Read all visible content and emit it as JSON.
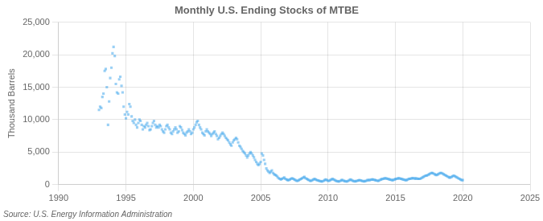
{
  "chart_data": {
    "type": "scatter",
    "title": "Monthly U.S. Ending Stocks of MTBE",
    "ylabel": "Thousand Barrels",
    "annotations": [
      "Source: U.S. Energy Information Administration"
    ],
    "marker": "square",
    "grid": true,
    "xlim": [
      1990,
      2025
    ],
    "xticks": [
      1990,
      1995,
      2000,
      2005,
      2010,
      2015,
      2020,
      2025
    ],
    "ylim": [
      0,
      25000
    ],
    "yticks": [
      0,
      {
        "value": 5000,
        "label": "5,000"
      },
      {
        "value": 10000,
        "label": "10,000"
      },
      {
        "value": 15000,
        "label": "15,000"
      },
      {
        "value": 20000,
        "label": "20,000"
      },
      {
        "value": 25000,
        "label": "25,000"
      }
    ],
    "x": [
      1993.0,
      1993.08,
      1993.17,
      1993.25,
      1993.33,
      1993.42,
      1993.5,
      1993.58,
      1993.67,
      1993.75,
      1993.83,
      1993.92,
      1994.0,
      1994.08,
      1994.17,
      1994.25,
      1994.33,
      1994.42,
      1994.5,
      1994.58,
      1994.67,
      1994.75,
      1994.83,
      1994.92,
      1995.0,
      1995.08,
      1995.17,
      1995.25,
      1995.33,
      1995.42,
      1995.5,
      1995.58,
      1995.67,
      1995.75,
      1995.83,
      1995.92,
      1996.0,
      1996.08,
      1996.17,
      1996.25,
      1996.33,
      1996.42,
      1996.5,
      1996.58,
      1996.67,
      1996.75,
      1996.83,
      1996.92,
      1997.0,
      1997.08,
      1997.17,
      1997.25,
      1997.33,
      1997.42,
      1997.5,
      1997.58,
      1997.67,
      1997.75,
      1997.83,
      1997.92,
      1998.0,
      1998.08,
      1998.17,
      1998.25,
      1998.33,
      1998.42,
      1998.5,
      1998.58,
      1998.67,
      1998.75,
      1998.83,
      1998.92,
      1999.0,
      1999.08,
      1999.17,
      1999.25,
      1999.33,
      1999.42,
      1999.5,
      1999.58,
      1999.67,
      1999.75,
      1999.83,
      1999.92,
      2000.0,
      2000.08,
      2000.17,
      2000.25,
      2000.33,
      2000.42,
      2000.5,
      2000.58,
      2000.67,
      2000.75,
      2000.83,
      2000.92,
      2001.0,
      2001.08,
      2001.17,
      2001.25,
      2001.33,
      2001.42,
      2001.5,
      2001.58,
      2001.67,
      2001.75,
      2001.83,
      2001.92,
      2002.0,
      2002.08,
      2002.17,
      2002.25,
      2002.33,
      2002.42,
      2002.5,
      2002.58,
      2002.67,
      2002.75,
      2002.83,
      2002.92,
      2003.0,
      2003.08,
      2003.17,
      2003.25,
      2003.33,
      2003.42,
      2003.5,
      2003.58,
      2003.67,
      2003.75,
      2003.83,
      2003.92,
      2004.0,
      2004.08,
      2004.17,
      2004.25,
      2004.33,
      2004.42,
      2004.5,
      2004.58,
      2004.67,
      2004.75,
      2004.83,
      2004.92,
      2005.0,
      2005.08,
      2005.17,
      2005.25,
      2005.33,
      2005.42,
      2005.5,
      2005.58,
      2005.67,
      2005.75,
      2005.83,
      2005.92,
      2006.0,
      2006.08,
      2006.17,
      2006.25,
      2006.33,
      2006.42,
      2006.5,
      2006.58,
      2006.67,
      2006.75,
      2006.83,
      2006.92,
      2007.0,
      2007.08,
      2007.17,
      2007.25,
      2007.33,
      2007.42,
      2007.5,
      2007.58,
      2007.67,
      2007.75,
      2007.83,
      2007.92,
      2008.0,
      2008.08,
      2008.17,
      2008.25,
      2008.33,
      2008.42,
      2008.5,
      2008.58,
      2008.67,
      2008.75,
      2008.83,
      2008.92,
      2009.0,
      2009.08,
      2009.17,
      2009.25,
      2009.33,
      2009.42,
      2009.5,
      2009.58,
      2009.67,
      2009.75,
      2009.83,
      2009.92,
      2010.0,
      2010.08,
      2010.17,
      2010.25,
      2010.33,
      2010.42,
      2010.5,
      2010.58,
      2010.67,
      2010.75,
      2010.83,
      2010.92,
      2011.0,
      2011.08,
      2011.17,
      2011.25,
      2011.33,
      2011.42,
      2011.5,
      2011.58,
      2011.67,
      2011.75,
      2011.83,
      2011.92,
      2012.0,
      2012.08,
      2012.17,
      2012.25,
      2012.33,
      2012.42,
      2012.5,
      2012.58,
      2012.67,
      2012.75,
      2012.83,
      2012.92,
      2013.0,
      2013.08,
      2013.17,
      2013.25,
      2013.33,
      2013.42,
      2013.5,
      2013.58,
      2013.67,
      2013.75,
      2013.83,
      2013.92,
      2014.0,
      2014.08,
      2014.17,
      2014.25,
      2014.33,
      2014.42,
      2014.5,
      2014.58,
      2014.67,
      2014.75,
      2014.83,
      2014.92,
      2015.0,
      2015.08,
      2015.17,
      2015.25,
      2015.33,
      2015.42,
      2015.5,
      2015.58,
      2015.67,
      2015.75,
      2015.83,
      2015.92,
      2016.0,
      2016.08,
      2016.17,
      2016.25,
      2016.33,
      2016.42,
      2016.5,
      2016.58,
      2016.67,
      2016.75,
      2016.83,
      2016.92,
      2017.0,
      2017.08,
      2017.17,
      2017.25,
      2017.33,
      2017.42,
      2017.5,
      2017.58,
      2017.67,
      2017.75,
      2017.83,
      2017.92,
      2018.0,
      2018.08,
      2018.17,
      2018.25,
      2018.33,
      2018.42,
      2018.5,
      2018.58,
      2018.67,
      2018.75,
      2018.83,
      2018.92,
      2019.0,
      2019.08,
      2019.17,
      2019.25,
      2019.33,
      2019.42,
      2019.5,
      2019.58,
      2019.67,
      2019.75,
      2019.83,
      2019.92,
      2020.0
    ],
    "values": [
      11500,
      12000,
      11800,
      13500,
      14000,
      17500,
      17800,
      15000,
      9200,
      12800,
      16400,
      18000,
      20200,
      21200,
      19800,
      15500,
      14200,
      14000,
      16200,
      16600,
      15200,
      14200,
      12000,
      10800,
      10200,
      11200,
      10800,
      12400,
      12000,
      10500,
      9800,
      9500,
      10000,
      9200,
      8800,
      9500,
      10000,
      9800,
      9200,
      8500,
      9000,
      8800,
      9200,
      9500,
      9000,
      8400,
      8500,
      9000,
      9500,
      9800,
      9200,
      8800,
      9000,
      8800,
      9200,
      9000,
      8500,
      8200,
      8000,
      8500,
      9000,
      9200,
      8800,
      8500,
      8000,
      7800,
      8200,
      8500,
      8800,
      8500,
      8000,
      8200,
      9000,
      8800,
      8400,
      8000,
      7800,
      7600,
      8000,
      8200,
      8500,
      8200,
      7800,
      8000,
      8500,
      8800,
      9200,
      9600,
      9800,
      9200,
      8800,
      8500,
      8000,
      7800,
      7600,
      8200,
      8500,
      8200,
      8000,
      7800,
      7500,
      7800,
      8000,
      8200,
      7800,
      7500,
      7000,
      7200,
      7500,
      7800,
      8000,
      7800,
      7500,
      7200,
      7000,
      6800,
      6500,
      6200,
      6000,
      6500,
      6800,
      7000,
      7200,
      7000,
      6500,
      6000,
      5800,
      5500,
      5200,
      5000,
      4800,
      4500,
      4200,
      4500,
      4800,
      5000,
      4800,
      4500,
      4200,
      3800,
      3500,
      3200,
      3000,
      3200,
      3500,
      4800,
      4500,
      3800,
      3200,
      2500,
      2200,
      2000,
      1800,
      2000,
      2200,
      1800,
      1600,
      1500,
      1400,
      1200,
      1000,
      900,
      800,
      900,
      1000,
      1100,
      900,
      800,
      700,
      700,
      800,
      900,
      1000,
      900,
      800,
      700,
      600,
      600,
      700,
      800,
      900,
      1000,
      1100,
      1200,
      1000,
      900,
      800,
      700,
      600,
      600,
      700,
      800,
      900,
      800,
      700,
      650,
      600,
      550,
      500,
      500,
      600,
      700,
      800,
      700,
      600,
      600,
      700,
      800,
      900,
      800,
      700,
      600,
      550,
      500,
      500,
      600,
      700,
      700,
      600,
      550,
      500,
      500,
      600,
      700,
      800,
      700,
      600,
      550,
      500,
      550,
      600,
      650,
      700,
      650,
      600,
      550,
      500,
      550,
      600,
      700,
      700,
      700,
      750,
      800,
      800,
      750,
      700,
      650,
      600,
      600,
      700,
      800,
      850,
      900,
      950,
      1000,
      950,
      900,
      850,
      800,
      750,
      700,
      700,
      800,
      850,
      900,
      950,
      1000,
      950,
      900,
      850,
      800,
      750,
      700,
      700,
      800,
      900,
      900,
      950,
      1000,
      1000,
      950,
      950,
      950,
      900,
      900,
      900,
      1000,
      1100,
      1200,
      1300,
      1400,
      1400,
      1500,
      1600,
      1700,
      1800,
      1800,
      1700,
      1600,
      1500,
      1500,
      1600,
      1700,
      1800,
      1800,
      1700,
      1600,
      1500,
      1400,
      1300,
      1200,
      1100,
      1100,
      1200,
      1300,
      1400,
      1300,
      1200,
      1100,
      1000,
      900,
      800,
      700,
      700
    ]
  }
}
